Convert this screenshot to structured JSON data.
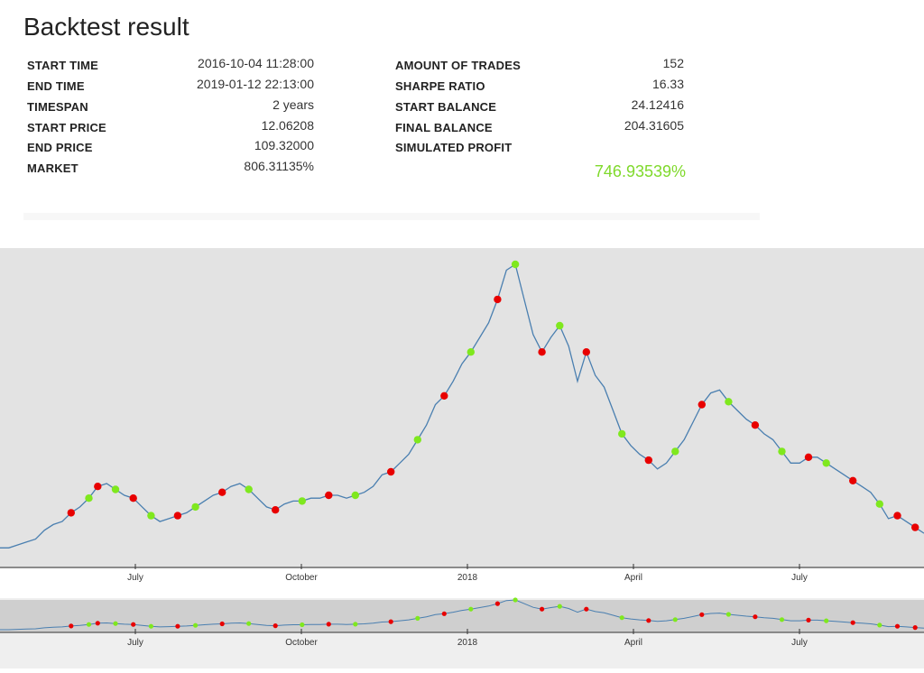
{
  "page": {
    "title": "Backtest result"
  },
  "stats": {
    "left": [
      {
        "label": "START TIME",
        "value": "2016-10-04 11:28:00"
      },
      {
        "label": "END TIME",
        "value": "2019-01-12 22:13:00"
      },
      {
        "label": "TIMESPAN",
        "value": "2 years"
      },
      {
        "label": "START PRICE",
        "value": "12.06208"
      },
      {
        "label": "END PRICE",
        "value": "109.32000"
      },
      {
        "label": "MARKET",
        "value": "806.31135%"
      }
    ],
    "right": [
      {
        "label": "AMOUNT OF TRADES",
        "value": "152"
      },
      {
        "label": "SHARPE RATIO",
        "value": "16.33"
      },
      {
        "label": "START BALANCE",
        "value": "24.12416"
      },
      {
        "label": "FINAL BALANCE",
        "value": "204.31605"
      },
      {
        "label": "SIMULATED PROFIT",
        "value": ""
      }
    ],
    "profit": "746.93539%",
    "profit_color": "#7fd92b"
  },
  "chart_data": {
    "type": "line",
    "x_tick_labels": [
      "July",
      "October",
      "2018",
      "April",
      "July"
    ],
    "navigator_tick_labels": [
      "July",
      "October",
      "2018",
      "April",
      "July"
    ],
    "colors": {
      "line": "#4a7fb0",
      "buy": "#7fe81e",
      "sell": "#e80000",
      "background": "#e3e3e3",
      "navigator_background": "#cfcfcf"
    },
    "series": [
      {
        "values": [
          3,
          3,
          4,
          5,
          6,
          9,
          11,
          12,
          15,
          17,
          20,
          24,
          25,
          23,
          21,
          20,
          17,
          14,
          12,
          13,
          14,
          15,
          17,
          19,
          21,
          22,
          24,
          25,
          23,
          20,
          17,
          16,
          18,
          19,
          19,
          20,
          20,
          21,
          21,
          20,
          21,
          22,
          24,
          28,
          29,
          32,
          35,
          40,
          45,
          52,
          55,
          60,
          66,
          70,
          75,
          80,
          88,
          98,
          100,
          88,
          76,
          70,
          75,
          79,
          72,
          60,
          70,
          62,
          58,
          50,
          42,
          38,
          35,
          33,
          30,
          32,
          36,
          40,
          46,
          52,
          56,
          57,
          53,
          50,
          47,
          45,
          42,
          40,
          36,
          32,
          32,
          34,
          34,
          32,
          30,
          28,
          26,
          24,
          22,
          18,
          13,
          14,
          12,
          10,
          8
        ]
      }
    ],
    "trade_markers": [
      {
        "i": 8,
        "action": "sell"
      },
      {
        "i": 10,
        "action": "buy"
      },
      {
        "i": 11,
        "action": "sell"
      },
      {
        "i": 13,
        "action": "buy"
      },
      {
        "i": 15,
        "action": "sell"
      },
      {
        "i": 17,
        "action": "buy"
      },
      {
        "i": 20,
        "action": "sell"
      },
      {
        "i": 22,
        "action": "buy"
      },
      {
        "i": 25,
        "action": "sell"
      },
      {
        "i": 28,
        "action": "buy"
      },
      {
        "i": 31,
        "action": "sell"
      },
      {
        "i": 34,
        "action": "buy"
      },
      {
        "i": 37,
        "action": "sell"
      },
      {
        "i": 40,
        "action": "buy"
      },
      {
        "i": 44,
        "action": "sell"
      },
      {
        "i": 47,
        "action": "buy"
      },
      {
        "i": 50,
        "action": "sell"
      },
      {
        "i": 53,
        "action": "buy"
      },
      {
        "i": 56,
        "action": "sell"
      },
      {
        "i": 58,
        "action": "buy"
      },
      {
        "i": 61,
        "action": "sell"
      },
      {
        "i": 63,
        "action": "buy"
      },
      {
        "i": 66,
        "action": "sell"
      },
      {
        "i": 70,
        "action": "buy"
      },
      {
        "i": 73,
        "action": "sell"
      },
      {
        "i": 76,
        "action": "buy"
      },
      {
        "i": 79,
        "action": "sell"
      },
      {
        "i": 82,
        "action": "buy"
      },
      {
        "i": 85,
        "action": "sell"
      },
      {
        "i": 88,
        "action": "buy"
      },
      {
        "i": 91,
        "action": "sell"
      },
      {
        "i": 93,
        "action": "buy"
      },
      {
        "i": 96,
        "action": "sell"
      },
      {
        "i": 99,
        "action": "buy"
      },
      {
        "i": 101,
        "action": "sell"
      },
      {
        "i": 103,
        "action": "sell"
      }
    ]
  }
}
